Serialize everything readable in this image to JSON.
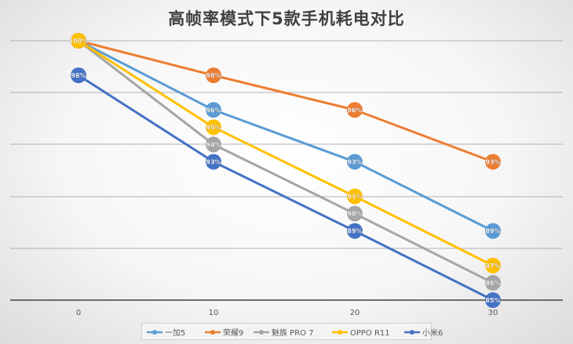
{
  "chart_data": {
    "type": "line",
    "title": "高帧率模式下5款手机耗电对比",
    "xlabel": "",
    "ylabel": "",
    "x": [
      0,
      10,
      20,
      30
    ],
    "ylim": [
      85,
      100
    ],
    "grid": true,
    "legend_position": "bottom",
    "series": [
      {
        "name": "一加5",
        "color": "#5B9BD5",
        "values": [
          100,
          96,
          93,
          89
        ],
        "labels": [
          "",
          "96%",
          "93%",
          "89%"
        ]
      },
      {
        "name": "荣耀9",
        "color": "#ED7D31",
        "values": [
          100,
          98,
          96,
          93
        ],
        "labels": [
          "",
          "98%",
          "96%",
          "93%"
        ]
      },
      {
        "name": "魅族 PRO 7",
        "color": "#A5A5A5",
        "values": [
          100,
          94,
          90,
          86
        ],
        "labels": [
          "",
          "94%",
          "90%",
          "86%"
        ]
      },
      {
        "name": "OPPO R11",
        "color": "#FFC000",
        "values": [
          100,
          95,
          91,
          87
        ],
        "labels": [
          "100%",
          "95%",
          "91%",
          "87%"
        ]
      },
      {
        "name": "小米6",
        "color": "#4472C4",
        "values": [
          98,
          93,
          89,
          85
        ],
        "labels": [
          "98%",
          "93%",
          "89%",
          "85%"
        ]
      }
    ]
  }
}
